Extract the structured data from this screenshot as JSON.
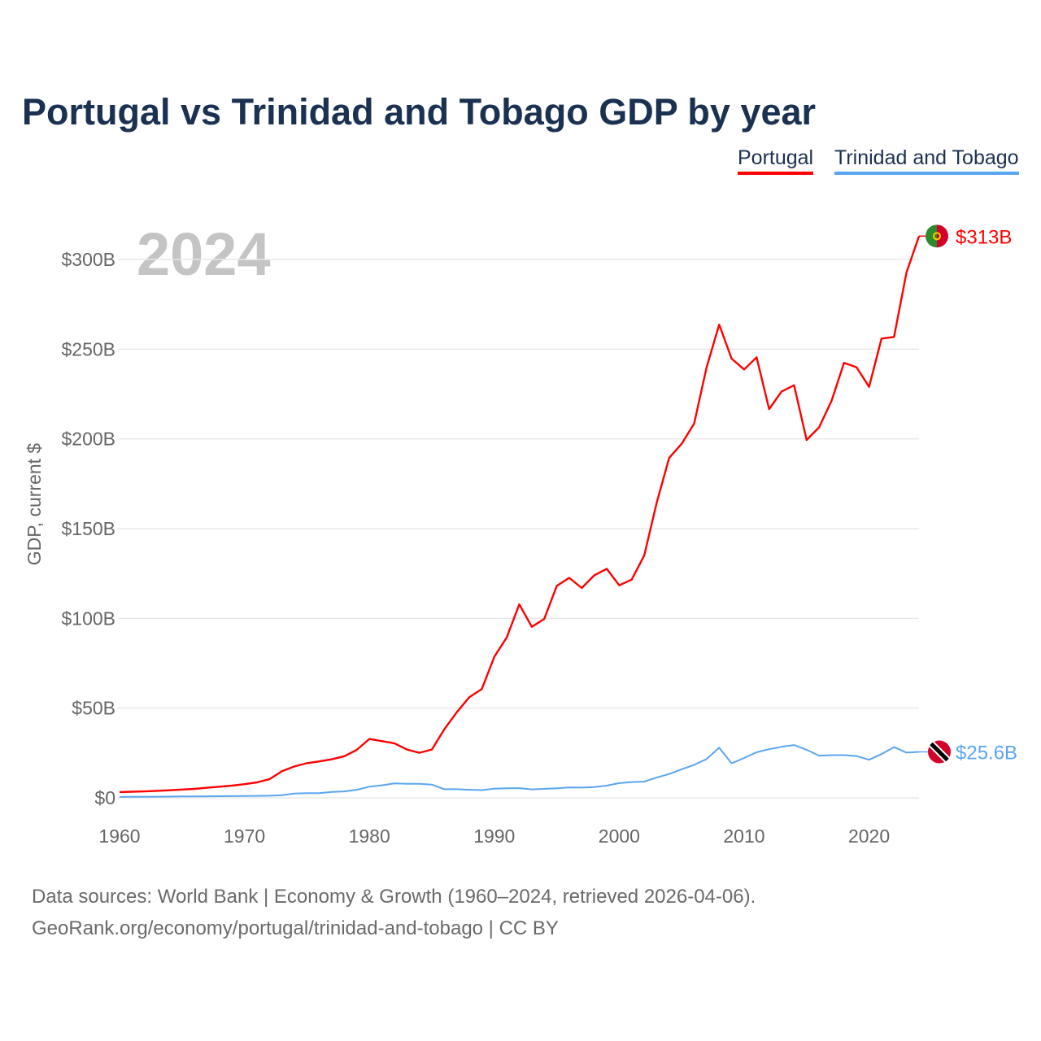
{
  "title": "Portugal vs Trinidad and Tobago GDP by year",
  "footer": {
    "line1": "Data sources: World Bank | Economy & Growth (1960–2024, retrieved 2026-04-06).",
    "line2": "GeoRank.org/economy/portugal/trinidad-and-tobago | CC BY"
  },
  "chart_data": {
    "type": "line",
    "title": "Portugal vs Trinidad and Tobago GDP by year",
    "ylabel": "GDP, current $",
    "xlabel": "",
    "year_watermark": "2024",
    "xlim": [
      1960,
      2024
    ],
    "ylim": [
      0,
      300
    ],
    "x_ticks": [
      1960,
      1970,
      1980,
      1990,
      2000,
      2010,
      2020
    ],
    "y_ticks": [
      {
        "v": 0,
        "label": "$0"
      },
      {
        "v": 50,
        "label": "$50B"
      },
      {
        "v": 100,
        "label": "$100B"
      },
      {
        "v": 150,
        "label": "$150B"
      },
      {
        "v": 200,
        "label": "$200B"
      },
      {
        "v": 250,
        "label": "$250B"
      },
      {
        "v": 300,
        "label": "$300B"
      }
    ],
    "legend_position": "top-right",
    "start_year": 1960,
    "series": [
      {
        "name": "Portugal",
        "color": "#ff0000",
        "end_label": "$313B",
        "flag": "portugal-flag",
        "values": [
          3.2,
          3.4,
          3.6,
          3.9,
          4.2,
          4.6,
          5.0,
          5.6,
          6.2,
          6.8,
          7.6,
          8.6,
          10.4,
          14.8,
          17.5,
          19.3,
          20.3,
          21.5,
          23.2,
          26.8,
          32.8,
          31.6,
          30.4,
          26.9,
          25.1,
          26.9,
          38.2,
          47.7,
          56.1,
          60.6,
          78.6,
          89.4,
          107.8,
          95.3,
          99.7,
          118.1,
          122.6,
          116.9,
          124.0,
          127.6,
          118.4,
          121.6,
          135.0,
          164.5,
          189.4,
          197.3,
          208.6,
          240.0,
          263.7,
          244.7,
          238.7,
          245.5,
          216.6,
          226.4,
          229.9,
          199.4,
          206.4,
          221.3,
          242.4,
          239.9,
          229.0,
          255.9,
          256.8,
          292.7,
          313.0
        ]
      },
      {
        "name": "Trinidad and Tobago",
        "color": "#5aa5f0",
        "end_label": "$25.6B",
        "flag": "trinidad-flag",
        "values": [
          0.5,
          0.55,
          0.6,
          0.65,
          0.7,
          0.75,
          0.8,
          0.85,
          0.9,
          0.95,
          1.0,
          1.1,
          1.2,
          1.5,
          2.4,
          2.6,
          2.6,
          3.3,
          3.6,
          4.5,
          6.2,
          7.0,
          8.0,
          7.8,
          7.8,
          7.4,
          4.8,
          4.8,
          4.5,
          4.3,
          5.1,
          5.3,
          5.4,
          4.7,
          5.0,
          5.3,
          5.8,
          5.7,
          6.0,
          6.8,
          8.2,
          8.8,
          9.0,
          11.3,
          13.3,
          15.9,
          18.4,
          21.6,
          27.9,
          19.2,
          22.2,
          25.4,
          27.1,
          28.4,
          29.4,
          26.8,
          23.5,
          23.8,
          23.8,
          23.3,
          21.2,
          24.4,
          28.3,
          25.2,
          25.6
        ]
      }
    ]
  }
}
